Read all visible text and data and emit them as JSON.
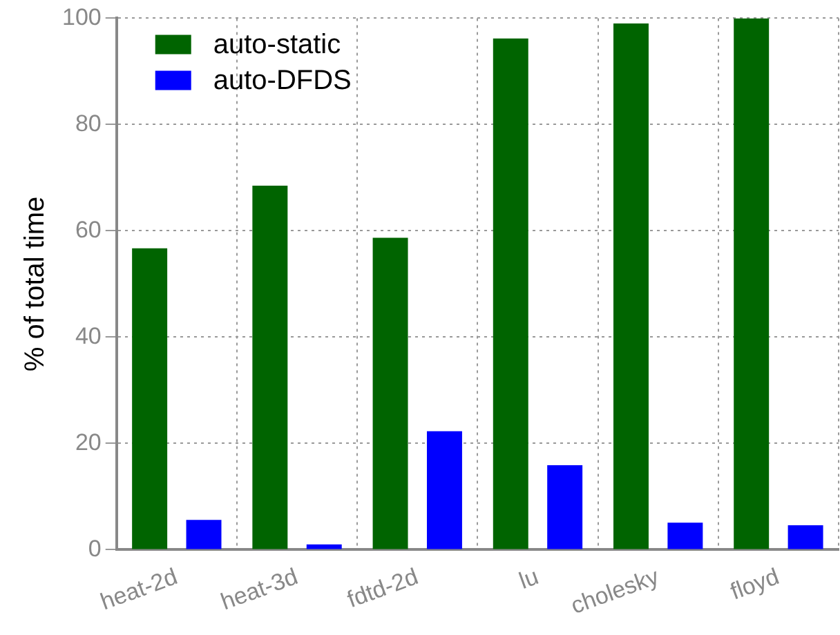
{
  "chart_data": {
    "type": "bar",
    "ylabel": "% of total time",
    "categories": [
      "heat-2d",
      "heat-3d",
      "fdtd-2d",
      "lu",
      "cholesky",
      "floyd"
    ],
    "series": [
      {
        "name": "auto-static",
        "color": "#006400",
        "values": [
          56.7,
          68.5,
          58.7,
          96.2,
          99.0,
          100
        ]
      },
      {
        "name": "auto-DFDS",
        "color": "#0000ff",
        "values": [
          5.6,
          1.0,
          22.3,
          15.9,
          5.1,
          4.6
        ]
      }
    ],
    "ylim": [
      0,
      100
    ],
    "yticks": [
      0,
      20,
      40,
      60,
      80,
      100
    ],
    "grid": true,
    "legend": "top left"
  }
}
